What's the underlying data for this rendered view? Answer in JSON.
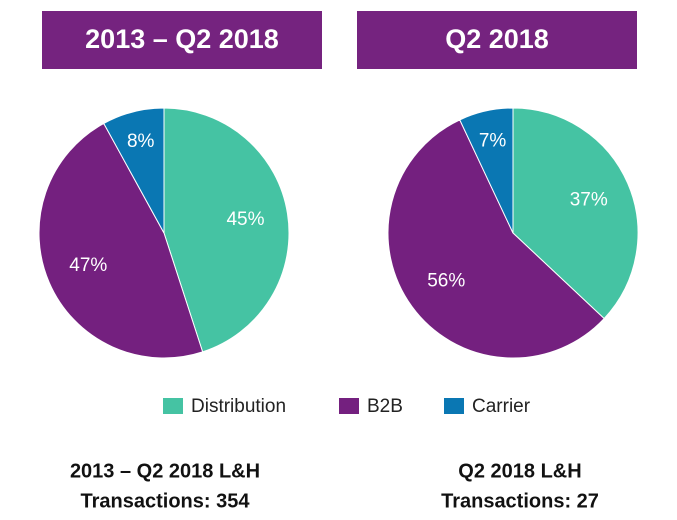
{
  "chart_data": [
    {
      "type": "pie",
      "title": "2013 – Q2 2018",
      "values": [
        45,
        47,
        8
      ],
      "value_labels": [
        "45%",
        "47%",
        "8%"
      ],
      "caption": [
        "2013 – Q2 2018 L&H",
        "Transactions: 354"
      ]
    },
    {
      "type": "pie",
      "title": "Q2 2018",
      "values": [
        37,
        56,
        7
      ],
      "value_labels": [
        "37%",
        "56%",
        "7%"
      ],
      "caption": [
        "Q2 2018 L&H",
        "Transactions: 27"
      ]
    }
  ],
  "legend": {
    "categories": [
      "Distribution",
      "B2B",
      "Carrier"
    ],
    "colors": [
      "#45c3a3",
      "#74207f",
      "#0a77b3"
    ]
  }
}
